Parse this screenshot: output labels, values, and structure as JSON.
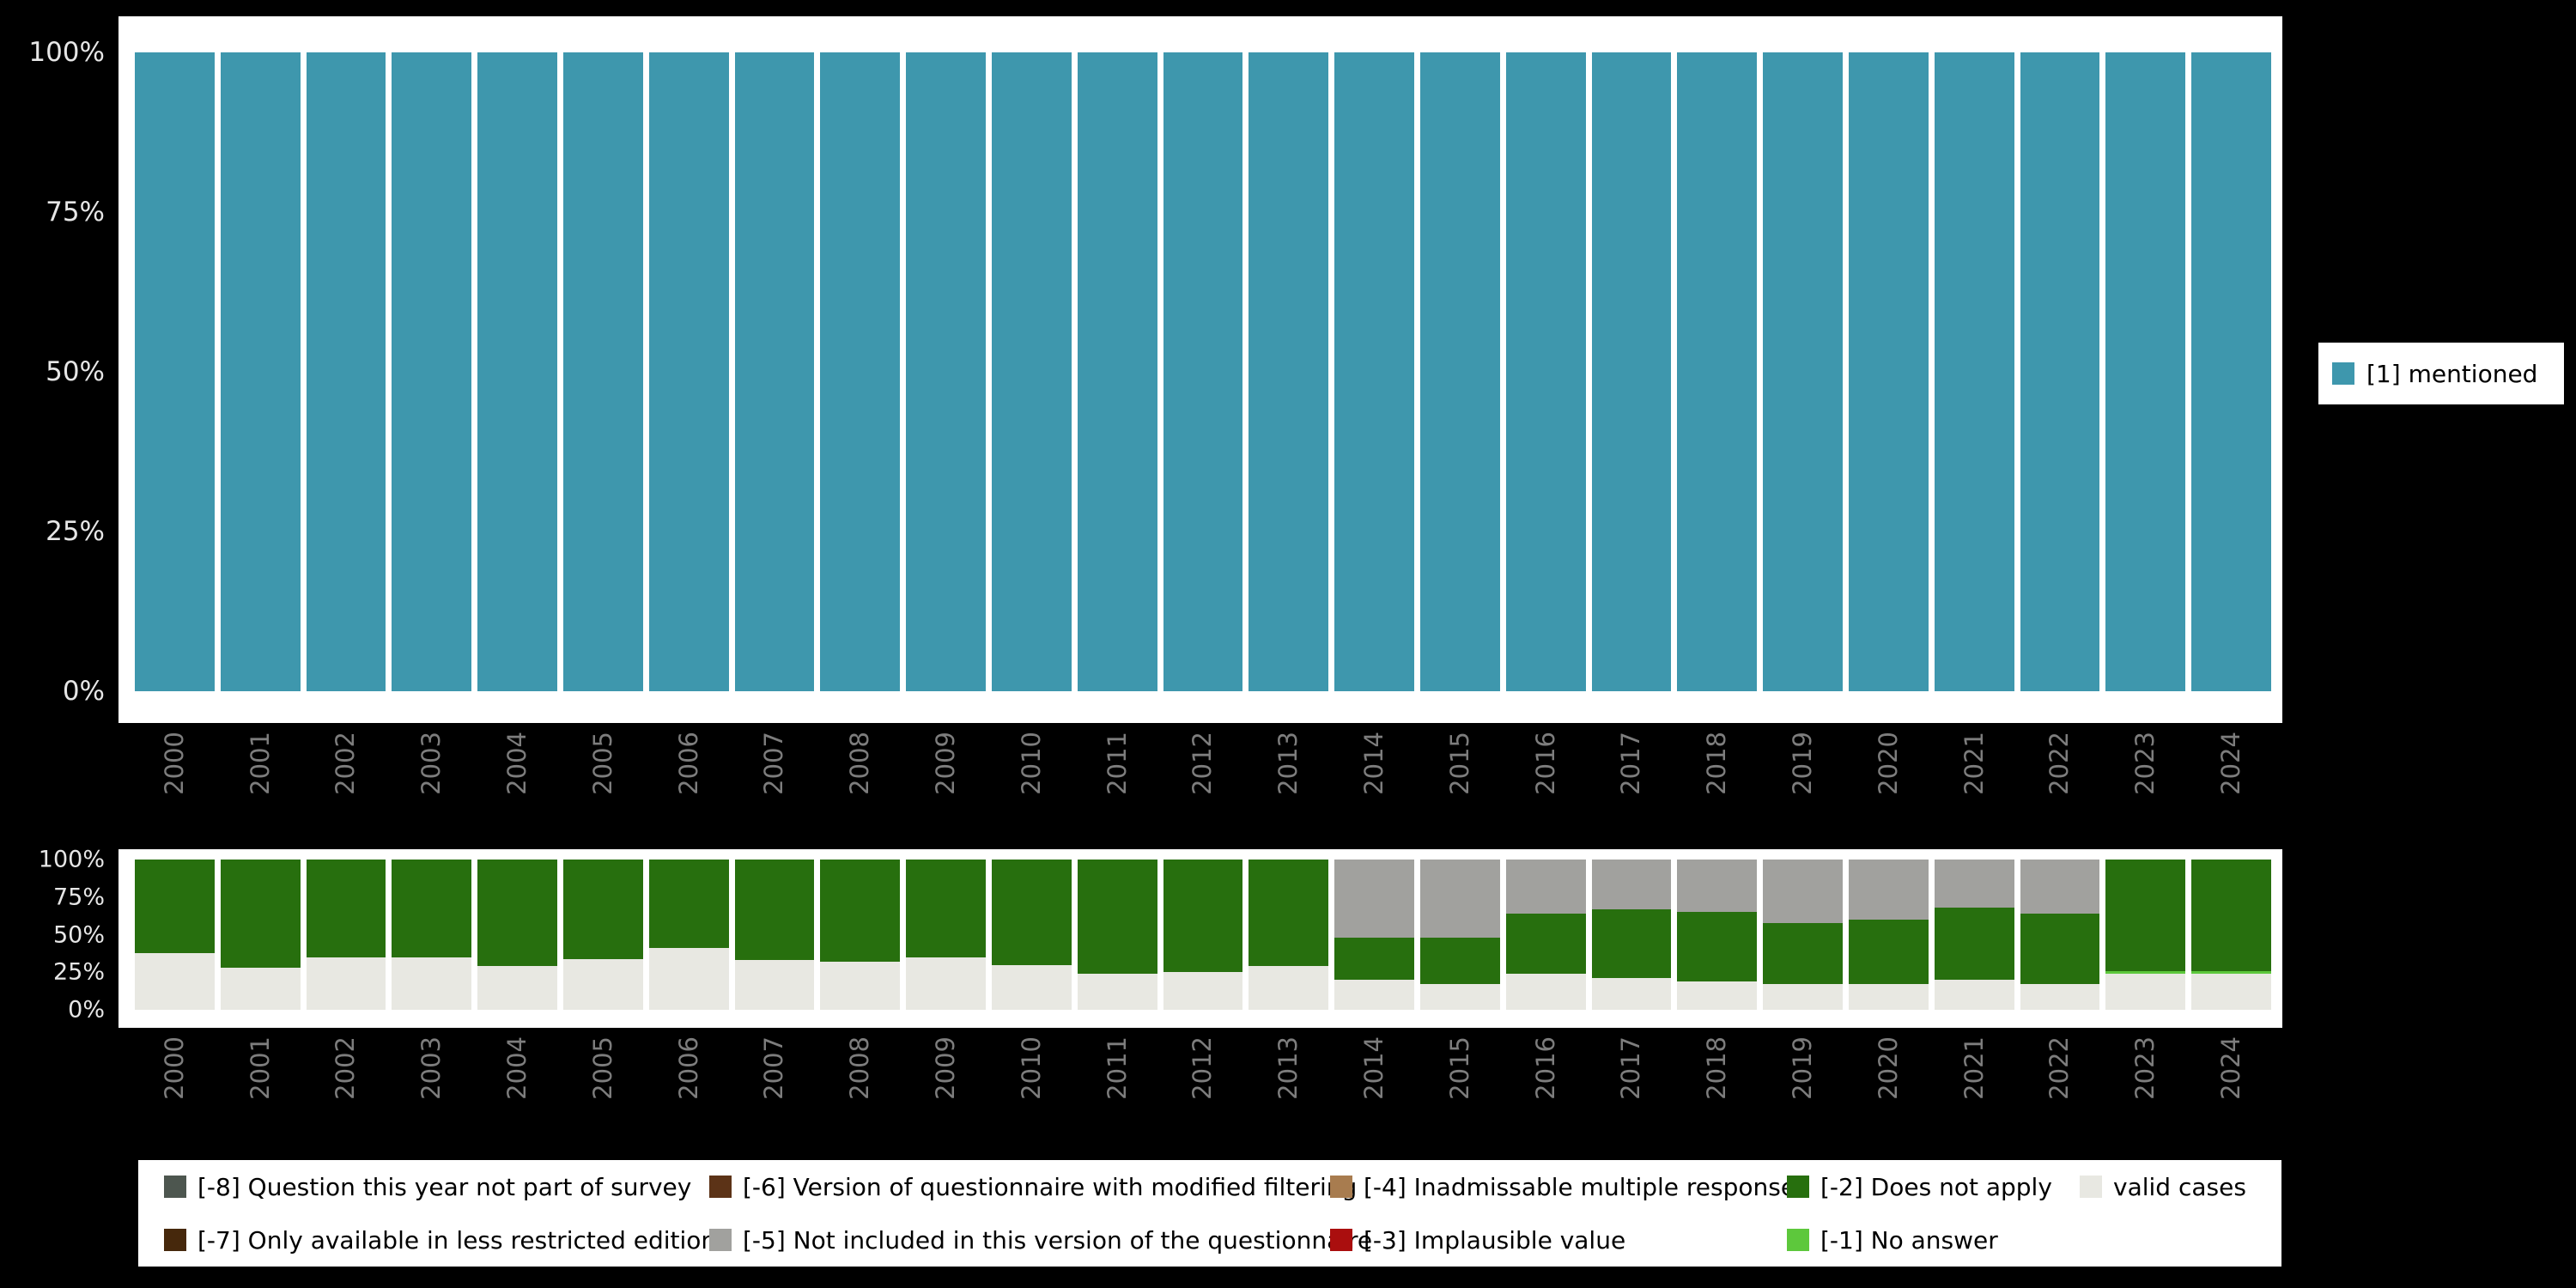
{
  "colors": {
    "background": "#000000",
    "panel": "#FFFFFF",
    "axis_text": "#E6E6E6",
    "year_text": "#7D7D7D",
    "legend_text": "#000000"
  },
  "legend_right": {
    "label": "[1] mentioned",
    "color": "#3E97AD"
  },
  "legend_bottom": {
    "items": [
      {
        "label": "[-8] Question this year not part of survey",
        "color": "#4D564F"
      },
      {
        "label": "[-7] Only available in less restricted edition",
        "color": "#46280C"
      },
      {
        "label": "[-6] Version of questionnaire with modified filtering",
        "color": "#5C3317"
      },
      {
        "label": "[-5] Not included in this version of the questionnaire",
        "color": "#A1A19E"
      },
      {
        "label": "[-4] Inadmissable multiple response",
        "color": "#A87C4F"
      },
      {
        "label": "[-3] Implausible value",
        "color": "#AA0E0E"
      },
      {
        "label": "[-2] Does not apply",
        "color": "#276F0E"
      },
      {
        "label": "[-1] No answer",
        "color": "#5DC83C"
      },
      {
        "label": "valid cases",
        "color": "#E8E8E2"
      }
    ]
  },
  "chart_data": [
    {
      "id": "frequency-chart",
      "type": "bar",
      "stacked": true,
      "title": "",
      "categories": [
        "2000",
        "2001",
        "2002",
        "2003",
        "2004",
        "2005",
        "2006",
        "2007",
        "2008",
        "2009",
        "2010",
        "2011",
        "2012",
        "2013",
        "2014",
        "2015",
        "2016",
        "2017",
        "2018",
        "2019",
        "2020",
        "2021",
        "2022",
        "2023",
        "2024"
      ],
      "series": [
        {
          "name": "[1] mentioned",
          "color": "#3E97AD",
          "values": [
            100,
            100,
            100,
            100,
            100,
            100,
            100,
            100,
            100,
            100,
            100,
            100,
            100,
            100,
            100,
            100,
            100,
            100,
            100,
            100,
            100,
            100,
            100,
            100,
            100
          ]
        }
      ],
      "ylim": [
        0,
        100
      ],
      "yticks": [
        "0%",
        "25%",
        "50%",
        "75%",
        "100%"
      ],
      "ytick_values": [
        0,
        25,
        50,
        75,
        100
      ],
      "legend_position": "right",
      "grid": false
    },
    {
      "id": "missing-values-chart",
      "type": "bar",
      "stacked": true,
      "title": "",
      "categories": [
        "2000",
        "2001",
        "2002",
        "2003",
        "2004",
        "2005",
        "2006",
        "2007",
        "2008",
        "2009",
        "2010",
        "2011",
        "2012",
        "2013",
        "2014",
        "2015",
        "2016",
        "2017",
        "2018",
        "2019",
        "2020",
        "2021",
        "2022",
        "2023",
        "2024"
      ],
      "series": [
        {
          "name": "valid cases",
          "color": "#E8E8E2",
          "values": [
            38,
            28,
            35,
            35,
            29,
            34,
            41,
            33,
            32,
            35,
            30,
            24,
            25,
            29,
            20,
            17,
            24,
            21,
            19,
            17,
            17,
            20,
            17,
            24,
            24
          ]
        },
        {
          "name": "[-1] No answer",
          "color": "#5DC83C",
          "values": [
            0,
            0,
            0,
            0,
            0,
            0,
            0,
            0,
            0,
            0,
            0,
            0,
            0,
            0,
            0,
            0,
            0,
            0,
            0,
            0,
            0,
            0,
            0,
            2,
            2
          ]
        },
        {
          "name": "[-2] Does not apply",
          "color": "#276F0E",
          "values": [
            62,
            72,
            65,
            65,
            71,
            66,
            59,
            67,
            68,
            65,
            70,
            76,
            75,
            71,
            28,
            31,
            40,
            46,
            46,
            41,
            43,
            48,
            47,
            74,
            74
          ]
        },
        {
          "name": "[-5] Not included in this version of the questionnaire",
          "color": "#A1A19E",
          "values": [
            0,
            0,
            0,
            0,
            0,
            0,
            0,
            0,
            0,
            0,
            0,
            0,
            0,
            0,
            52,
            52,
            36,
            33,
            35,
            42,
            40,
            32,
            36,
            0,
            0
          ]
        }
      ],
      "ylim": [
        0,
        100
      ],
      "yticks": [
        "0%",
        "25%",
        "50%",
        "75%",
        "100%"
      ],
      "ytick_values": [
        0,
        25,
        50,
        75,
        100
      ],
      "legend_position": "bottom",
      "grid": false
    }
  ]
}
